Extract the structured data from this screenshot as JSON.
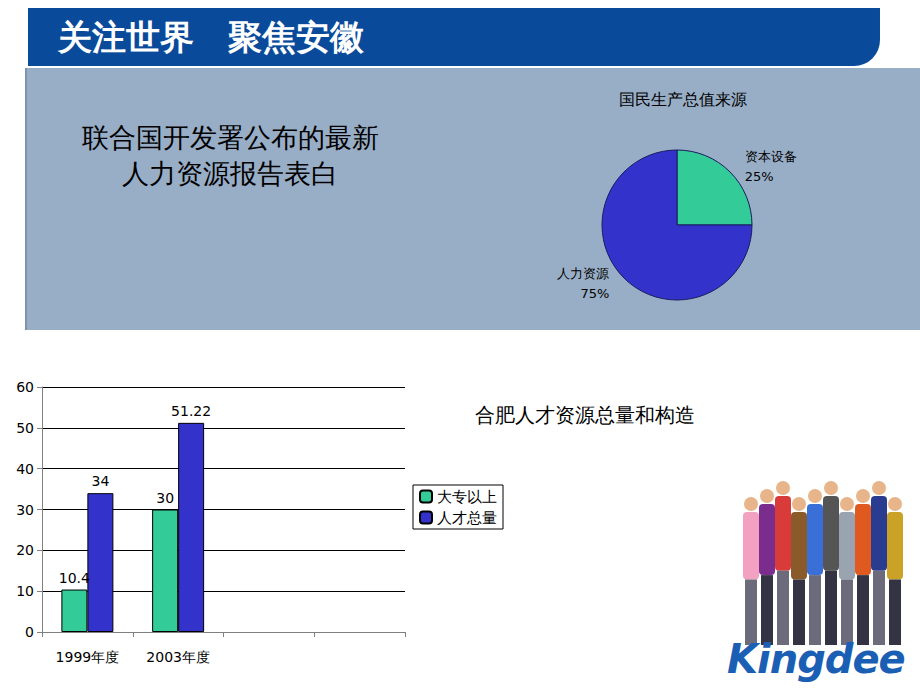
{
  "page": {
    "title": "关注世界　聚焦安徽",
    "caption": [
      "联合国开发署公布的最新",
      "人力资源报告表白"
    ],
    "logo": "Kingdee"
  },
  "chart_data": [
    {
      "type": "pie",
      "title": "国民生产总值来源",
      "categories": [
        "资本设备",
        "人力资源"
      ],
      "values": [
        25,
        75
      ],
      "value_labels": [
        "25%",
        "75%"
      ],
      "colors": [
        "#33cc99",
        "#3333cc"
      ],
      "data_labels": true
    },
    {
      "type": "bar",
      "title": "合肥人才资源总量和构造",
      "categories": [
        "1999年度",
        "2003年度",
        null,
        null
      ],
      "series": [
        {
          "name": "大专以上",
          "color": "#33cc99",
          "values": [
            10.4,
            30,
            null,
            null
          ]
        },
        {
          "name": "人才总量",
          "color": "#3333cc",
          "values": [
            34,
            51.22,
            null,
            null
          ]
        }
      ],
      "ylim": [
        0,
        60
      ],
      "yticks": [
        0,
        10,
        20,
        30,
        40,
        50,
        60
      ],
      "grid": true,
      "legend": "right",
      "data_labels": true
    }
  ]
}
